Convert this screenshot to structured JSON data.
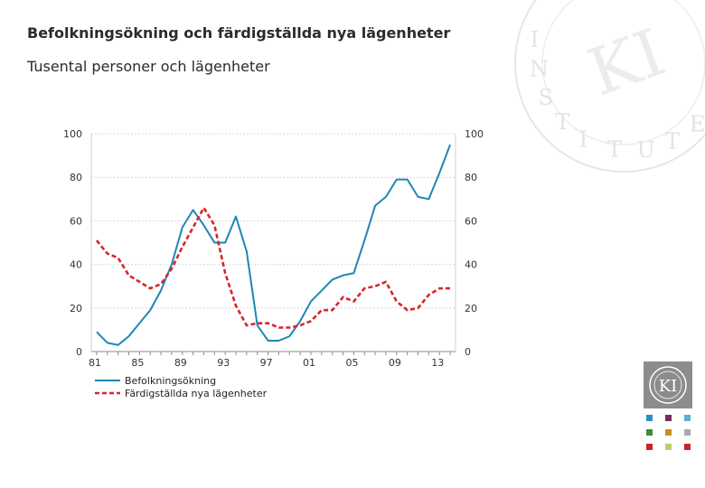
{
  "header": {
    "title": "Befolkningsökning och färdigställda nya lägenheter",
    "subtitle": "Tusental personer och lägenheter"
  },
  "brand": {
    "seal_letters": "INSTITUTET",
    "seal_monogram": "KI",
    "logo_monogram": "KI",
    "swatch_colors": [
      "#2a8fc7",
      "#7b2a5e",
      "#5aaed6",
      "#3f8a3a",
      "#c8901e",
      "#a7a9ac",
      "#cc2229",
      "#b5d36b",
      "#cc2229"
    ]
  },
  "chart_data": {
    "type": "line",
    "title": "Befolkningsökning och färdigställda nya lägenheter",
    "xlabel": "",
    "ylabel": "Tusental personer och lägenheter",
    "x": [
      1981,
      1982,
      1983,
      1984,
      1985,
      1986,
      1987,
      1988,
      1989,
      1990,
      1991,
      1992,
      1993,
      1994,
      1995,
      1996,
      1997,
      1998,
      1999,
      2000,
      2001,
      2002,
      2003,
      2004,
      2005,
      2006,
      2007,
      2008,
      2009,
      2010,
      2011,
      2012,
      2013,
      2014
    ],
    "x_tick_labels": [
      "81",
      "85",
      "89",
      "93",
      "97",
      "01",
      "05",
      "09",
      "13"
    ],
    "x_tick_values": [
      1981,
      1985,
      1989,
      1993,
      1997,
      2001,
      2005,
      2009,
      2013
    ],
    "xlim": [
      1981,
      2015
    ],
    "ylim": [
      0,
      100
    ],
    "y_ticks_left": [
      "0",
      "20",
      "40",
      "60",
      "80",
      "100"
    ],
    "y_ticks_right": [
      "0",
      "20",
      "40",
      "60",
      "80",
      "100"
    ],
    "y_tick_values": [
      0,
      20,
      40,
      60,
      80,
      100
    ],
    "grid": true,
    "legend_position": "bottom-left",
    "series": [
      {
        "name": "Befolkningsökning",
        "color": "#1f86b4",
        "dash": "solid",
        "values": [
          9,
          4,
          3,
          7,
          13,
          19,
          28,
          40,
          57,
          65,
          58,
          50,
          50,
          62,
          46,
          12,
          5,
          5,
          7,
          14,
          23,
          28,
          33,
          35,
          36,
          51,
          67,
          71,
          79,
          79,
          71,
          70,
          82,
          95
        ]
      },
      {
        "name": "Färdigställda nya lägenheter",
        "color": "#d7262b",
        "dash": "dashed",
        "values": [
          51,
          45,
          43,
          35,
          32,
          29,
          31,
          38,
          48,
          57,
          66,
          58,
          36,
          21,
          12,
          13,
          13,
          11,
          11,
          12,
          14,
          19,
          19,
          25,
          23,
          29,
          30,
          32,
          23,
          19,
          20,
          26,
          29,
          29
        ]
      }
    ]
  }
}
